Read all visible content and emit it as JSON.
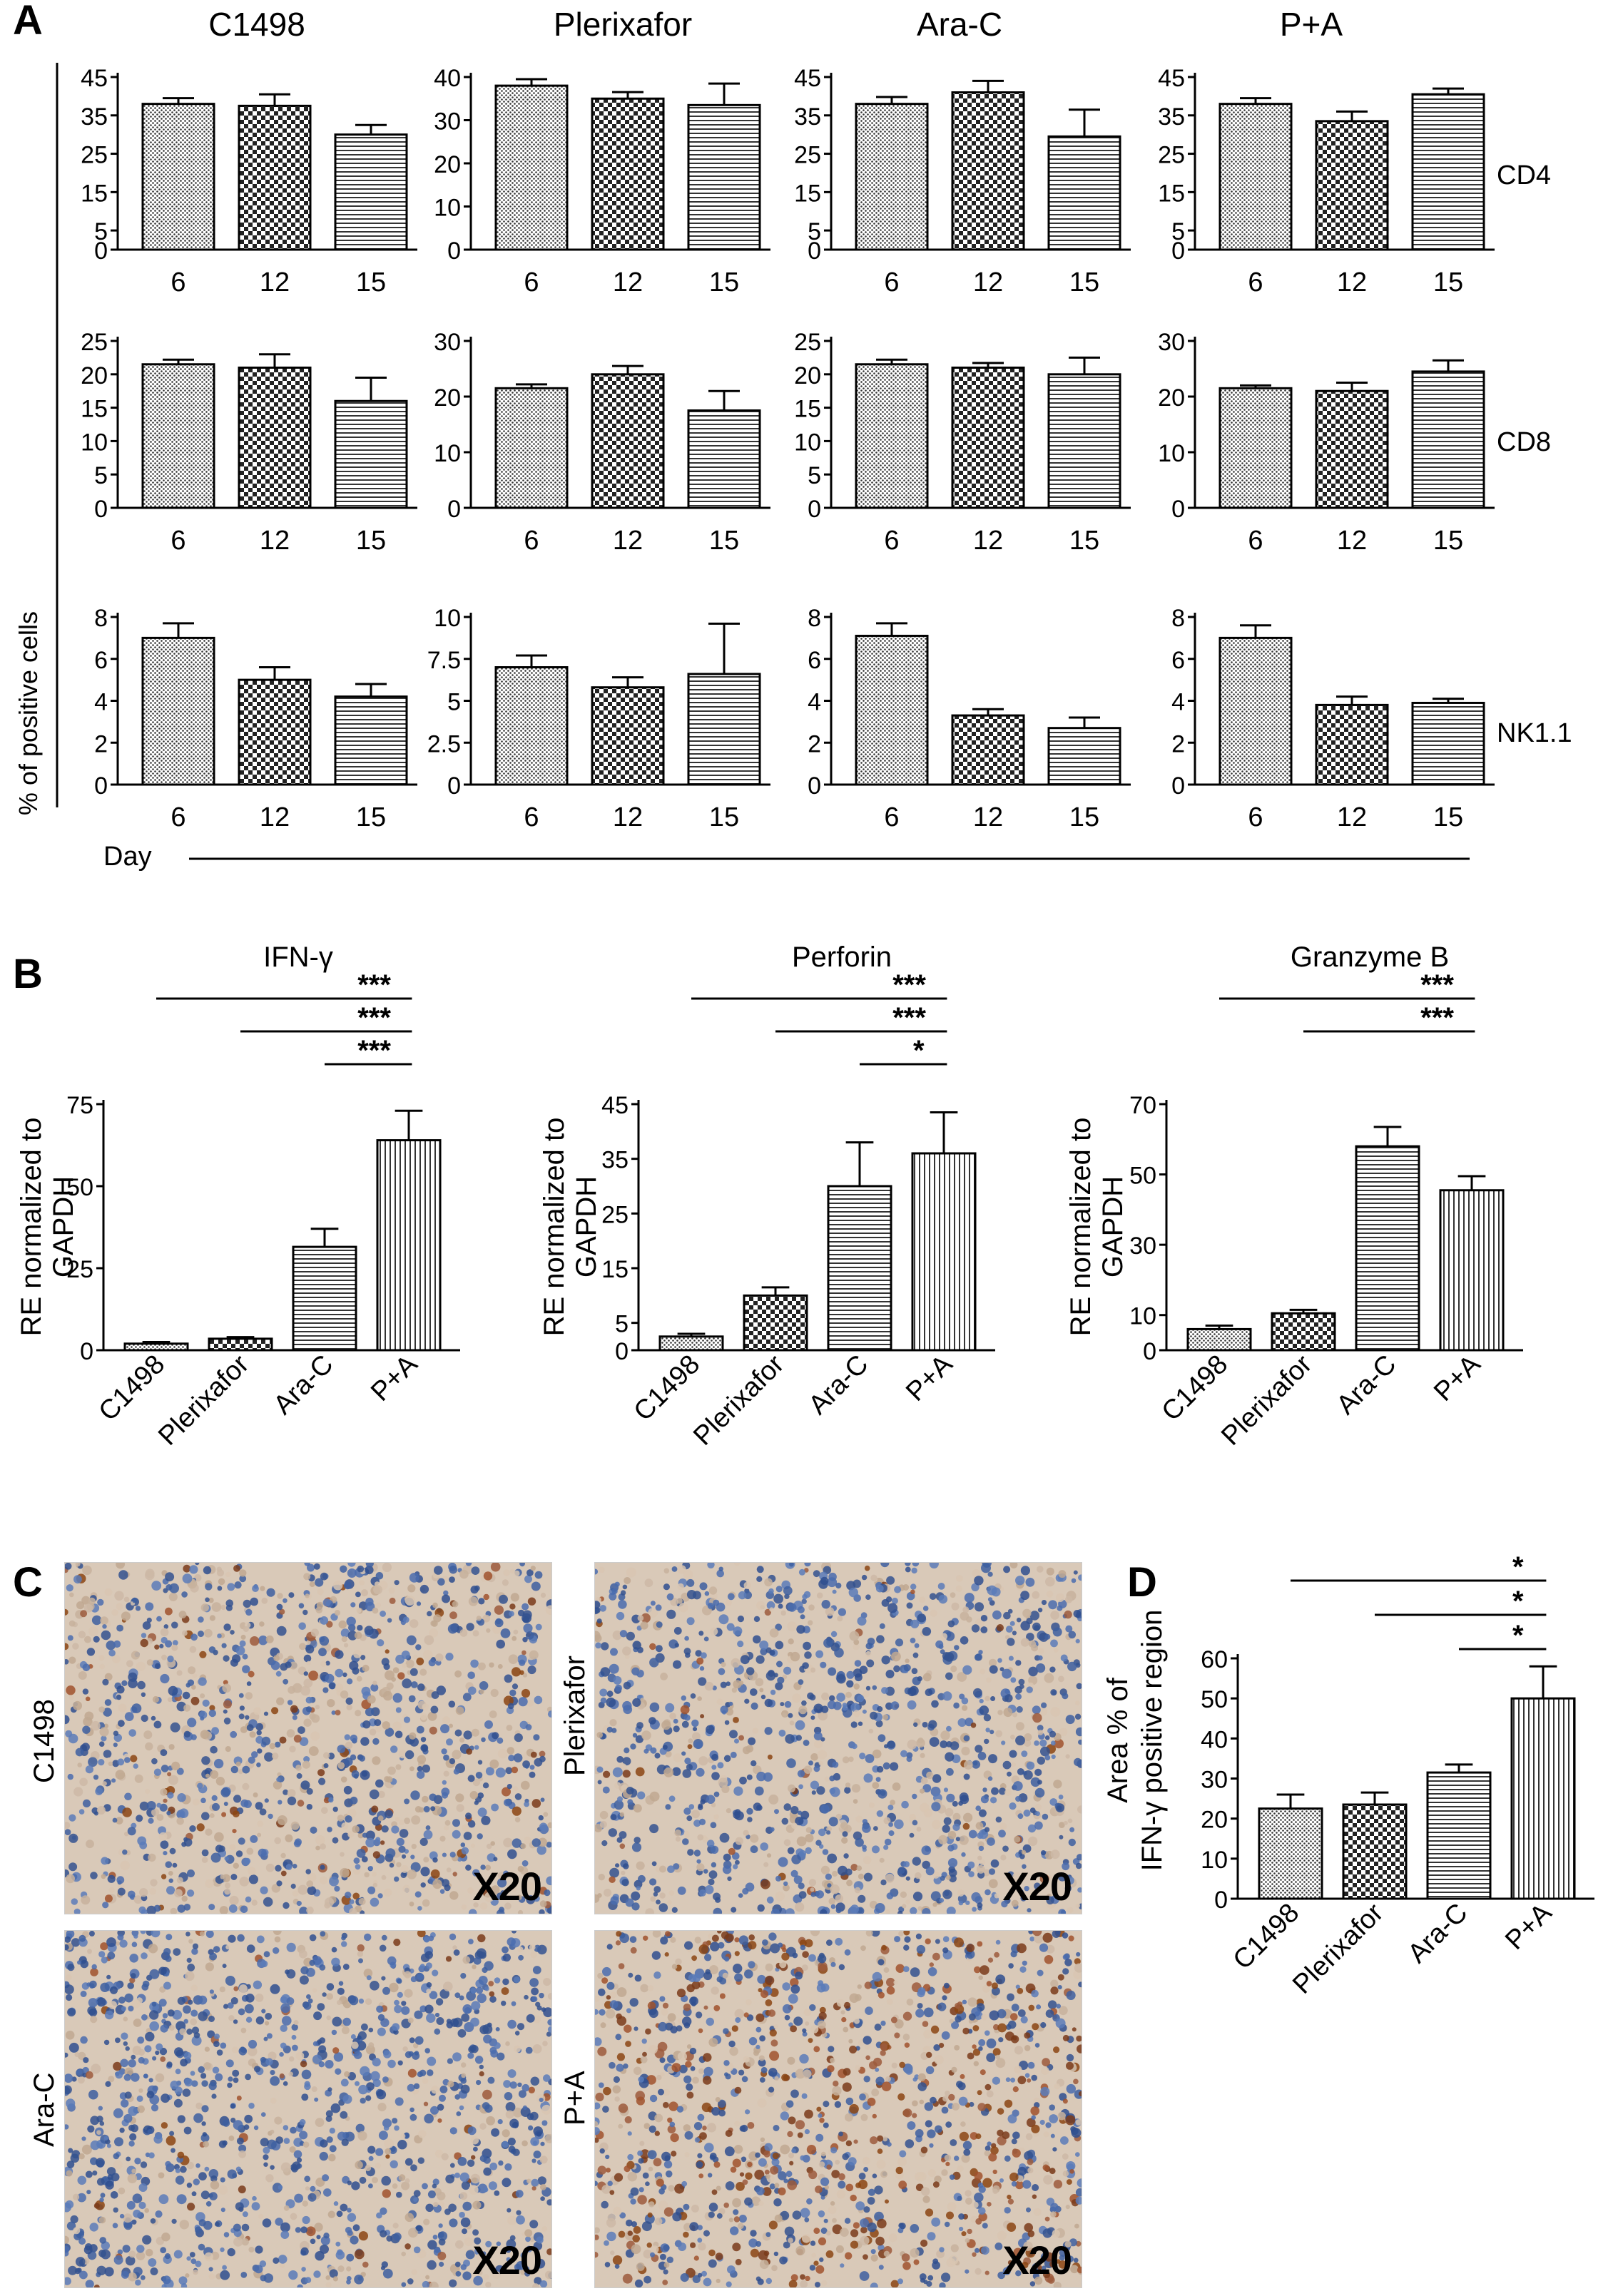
{
  "panel_letters": {
    "a": "A",
    "b": "B",
    "c": "C",
    "d": "D"
  },
  "panel_a": {
    "columns": [
      "C1498",
      "Plerixafor",
      "Ara-C",
      "P+A"
    ],
    "rows": [
      "CD4",
      "CD8",
      "NK1.1"
    ],
    "ylabel": "% of positive cells",
    "xlabel": "Day",
    "days": [
      "6",
      "12",
      "15"
    ]
  },
  "panel_b": {
    "titles": [
      "IFN-γ",
      "Perforin",
      "Granzyme B"
    ],
    "ylabel_line1": "RE normalized to",
    "ylabel_line2": "GAPDH",
    "categories": [
      "C1498",
      "Plerixafor",
      "Ara-C",
      "P+A"
    ]
  },
  "panel_c": {
    "labels": [
      "C1498",
      "Plerixafor",
      "Ara-C",
      "P+A"
    ],
    "magnification": "X20",
    "stain_colors": {
      "nuclei": "#3d5fa0",
      "background": "#d9c9b8",
      "positive": "#a0522d"
    }
  },
  "panel_d": {
    "ylabel_line1": "Area % of",
    "ylabel_line2": "IFN-γ positive region",
    "categories": [
      "C1498",
      "Plerixafor",
      "Ara-C",
      "P+A"
    ]
  },
  "chart_data": [
    {
      "id": "A-C1498-CD4",
      "type": "bar",
      "categories": [
        "6",
        "12",
        "15"
      ],
      "values": [
        38,
        37.5,
        30
      ],
      "errors": [
        1.5,
        3,
        2.5
      ],
      "yticks": [
        "0",
        "5",
        "15",
        "25",
        "35",
        "45"
      ],
      "ytick_values": [
        0,
        5,
        15,
        25,
        35,
        45
      ],
      "ylim": [
        0,
        45
      ]
    },
    {
      "id": "A-Plerixafor-CD4",
      "type": "bar",
      "categories": [
        "6",
        "12",
        "15"
      ],
      "values": [
        38,
        35,
        33.5
      ],
      "errors": [
        1.5,
        1.5,
        5
      ],
      "yticks": [
        "0",
        "10",
        "20",
        "30",
        "40"
      ],
      "ytick_values": [
        0,
        10,
        20,
        30,
        40
      ],
      "ylim": [
        0,
        40
      ]
    },
    {
      "id": "A-AraC-CD4",
      "type": "bar",
      "categories": [
        "6",
        "12",
        "15"
      ],
      "values": [
        38,
        41,
        29.5
      ],
      "errors": [
        1.8,
        3,
        7
      ],
      "yticks": [
        "0",
        "5",
        "15",
        "25",
        "35",
        "45"
      ],
      "ytick_values": [
        0,
        5,
        15,
        25,
        35,
        45
      ],
      "ylim": [
        0,
        45
      ]
    },
    {
      "id": "A-PA-CD4",
      "type": "bar",
      "categories": [
        "6",
        "12",
        "15"
      ],
      "values": [
        38,
        33.5,
        40.5
      ],
      "errors": [
        1.5,
        2.5,
        1.5
      ],
      "yticks": [
        "0",
        "5",
        "15",
        "25",
        "35",
        "45"
      ],
      "ytick_values": [
        0,
        5,
        15,
        25,
        35,
        45
      ],
      "ylim": [
        0,
        45
      ]
    },
    {
      "id": "A-C1498-CD8",
      "type": "bar",
      "categories": [
        "6",
        "12",
        "15"
      ],
      "values": [
        21.5,
        21,
        16
      ],
      "errors": [
        0.7,
        2,
        3.5
      ],
      "yticks": [
        "0",
        "5",
        "10",
        "15",
        "20",
        "25"
      ],
      "ytick_values": [
        0,
        5,
        10,
        15,
        20,
        25
      ],
      "ylim": [
        0,
        25
      ]
    },
    {
      "id": "A-Plerixafor-CD8",
      "type": "bar",
      "categories": [
        "6",
        "12",
        "15"
      ],
      "values": [
        21.5,
        24,
        17.5
      ],
      "errors": [
        0.7,
        1.5,
        3.5
      ],
      "yticks": [
        "0",
        "10",
        "20",
        "30"
      ],
      "ytick_values": [
        0,
        10,
        20,
        30
      ],
      "ylim": [
        0,
        30
      ]
    },
    {
      "id": "A-AraC-CD8",
      "type": "bar",
      "categories": [
        "6",
        "12",
        "15"
      ],
      "values": [
        21.5,
        21,
        20
      ],
      "errors": [
        0.7,
        0.7,
        2.5
      ],
      "yticks": [
        "0",
        "5",
        "10",
        "15",
        "20",
        "25"
      ],
      "ytick_values": [
        0,
        5,
        10,
        15,
        20,
        25
      ],
      "ylim": [
        0,
        25
      ]
    },
    {
      "id": "A-PA-CD8",
      "type": "bar",
      "categories": [
        "6",
        "12",
        "15"
      ],
      "values": [
        21.5,
        21,
        24.5
      ],
      "errors": [
        0.5,
        1.5,
        2
      ],
      "yticks": [
        "0",
        "10",
        "20",
        "30"
      ],
      "ytick_values": [
        0,
        10,
        20,
        30
      ],
      "ylim": [
        0,
        30
      ]
    },
    {
      "id": "A-C1498-NK",
      "type": "bar",
      "categories": [
        "6",
        "12",
        "15"
      ],
      "values": [
        7,
        5,
        4.2
      ],
      "errors": [
        0.7,
        0.6,
        0.6
      ],
      "yticks": [
        "0",
        "2",
        "4",
        "6",
        "8"
      ],
      "ytick_values": [
        0,
        2,
        4,
        6,
        8
      ],
      "ylim": [
        0,
        8
      ]
    },
    {
      "id": "A-Plerixafor-NK",
      "type": "bar",
      "categories": [
        "6",
        "12",
        "15"
      ],
      "values": [
        7,
        5.8,
        6.6
      ],
      "errors": [
        0.7,
        0.6,
        3
      ],
      "yticks": [
        "0",
        "2.5",
        "5",
        "7.5",
        "10"
      ],
      "ytick_values": [
        0,
        2.5,
        5,
        7.5,
        10
      ],
      "ylim": [
        0,
        10
      ]
    },
    {
      "id": "A-AraC-NK",
      "type": "bar",
      "categories": [
        "6",
        "12",
        "15"
      ],
      "values": [
        7.1,
        3.3,
        2.7
      ],
      "errors": [
        0.6,
        0.3,
        0.5
      ],
      "yticks": [
        "0",
        "2",
        "4",
        "6",
        "8"
      ],
      "ytick_values": [
        0,
        2,
        4,
        6,
        8
      ],
      "ylim": [
        0,
        8
      ]
    },
    {
      "id": "A-PA-NK",
      "type": "bar",
      "categories": [
        "6",
        "12",
        "15"
      ],
      "values": [
        7,
        3.8,
        3.9
      ],
      "errors": [
        0.6,
        0.4,
        0.2
      ],
      "yticks": [
        "0",
        "2",
        "4",
        "6",
        "8"
      ],
      "ytick_values": [
        0,
        2,
        4,
        6,
        8
      ],
      "ylim": [
        0,
        8
      ]
    },
    {
      "id": "B-IFNg",
      "type": "bar",
      "categories": [
        "C1498",
        "Plerixafor",
        "Ara-C",
        "P+A"
      ],
      "values": [
        2,
        3.5,
        31.5,
        64
      ],
      "errors": [
        0.5,
        0.5,
        5.5,
        9
      ],
      "yticks": [
        "0",
        "25",
        "50",
        "75"
      ],
      "ytick_values": [
        0,
        25,
        50,
        75
      ],
      "ylim": [
        0,
        75
      ],
      "significance": [
        {
          "from": 0,
          "to": 3,
          "label": "***"
        },
        {
          "from": 1,
          "to": 3,
          "label": "***"
        },
        {
          "from": 2,
          "to": 3,
          "label": "***"
        }
      ]
    },
    {
      "id": "B-Perforin",
      "type": "bar",
      "categories": [
        "C1498",
        "Plerixafor",
        "Ara-C",
        "P+A"
      ],
      "values": [
        2.5,
        10,
        30,
        36
      ],
      "errors": [
        0.5,
        1.5,
        8,
        7.5
      ],
      "yticks": [
        "0",
        "5",
        "15",
        "25",
        "35",
        "45"
      ],
      "ytick_values": [
        0,
        5,
        15,
        25,
        35,
        45
      ],
      "ylim": [
        0,
        45
      ],
      "significance": [
        {
          "from": 0,
          "to": 3,
          "label": "***"
        },
        {
          "from": 1,
          "to": 3,
          "label": "***"
        },
        {
          "from": 2,
          "to": 3,
          "label": "*"
        }
      ]
    },
    {
      "id": "B-GranzymeB",
      "type": "bar",
      "categories": [
        "C1498",
        "Plerixafor",
        "Ara-C",
        "P+A"
      ],
      "values": [
        6,
        10.5,
        58,
        45.5
      ],
      "errors": [
        1,
        1,
        5.5,
        4
      ],
      "yticks": [
        "0",
        "10",
        "30",
        "50",
        "70"
      ],
      "ytick_values": [
        0,
        10,
        30,
        50,
        70
      ],
      "ylim": [
        0,
        70
      ],
      "significance": [
        {
          "from": 0,
          "to": 3,
          "label": "***"
        },
        {
          "from": 1,
          "to": 3,
          "label": "***"
        }
      ]
    },
    {
      "id": "D",
      "type": "bar",
      "categories": [
        "C1498",
        "Plerixafor",
        "Ara-C",
        "P+A"
      ],
      "values": [
        22.5,
        23.5,
        31.5,
        50
      ],
      "errors": [
        3.5,
        3,
        2,
        8
      ],
      "yticks": [
        "0",
        "10",
        "20",
        "30",
        "40",
        "50",
        "60"
      ],
      "ytick_values": [
        0,
        10,
        20,
        30,
        40,
        50,
        60
      ],
      "ylim": [
        0,
        60
      ],
      "significance": [
        {
          "from": 0,
          "to": 3,
          "label": "*"
        },
        {
          "from": 1,
          "to": 3,
          "label": "*"
        },
        {
          "from": 2,
          "to": 3,
          "label": "*"
        }
      ]
    }
  ]
}
